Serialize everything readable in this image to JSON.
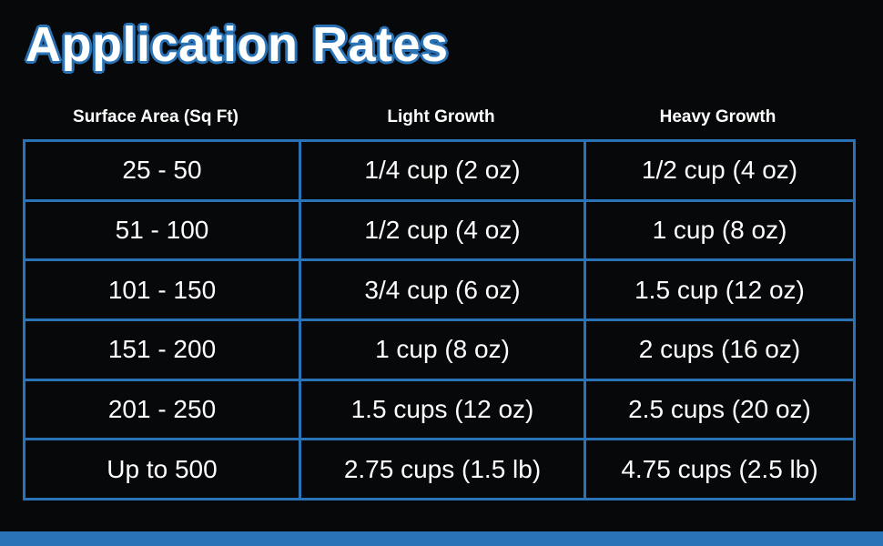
{
  "title": "Application Rates",
  "colors": {
    "background": "#060809",
    "accent": "#2a73b6",
    "text": "#ffffff"
  },
  "table": {
    "headers": [
      "Surface Area (Sq Ft)",
      "Light Growth",
      "Heavy Growth"
    ],
    "rows": [
      [
        "25 - 50",
        "1/4 cup (2 oz)",
        "1/2 cup (4 oz)"
      ],
      [
        "51 - 100",
        "1/2 cup (4 oz)",
        "1 cup (8 oz)"
      ],
      [
        "101 - 150",
        "3/4 cup (6 oz)",
        "1.5 cup (12 oz)"
      ],
      [
        "151 - 200",
        "1 cup (8 oz)",
        "2 cups (16 oz)"
      ],
      [
        "201 - 250",
        "1.5 cups (12 oz)",
        "2.5 cups (20 oz)"
      ],
      [
        "Up to 500",
        "2.75 cups (1.5 lb)",
        "4.75 cups (2.5 lb)"
      ]
    ]
  }
}
